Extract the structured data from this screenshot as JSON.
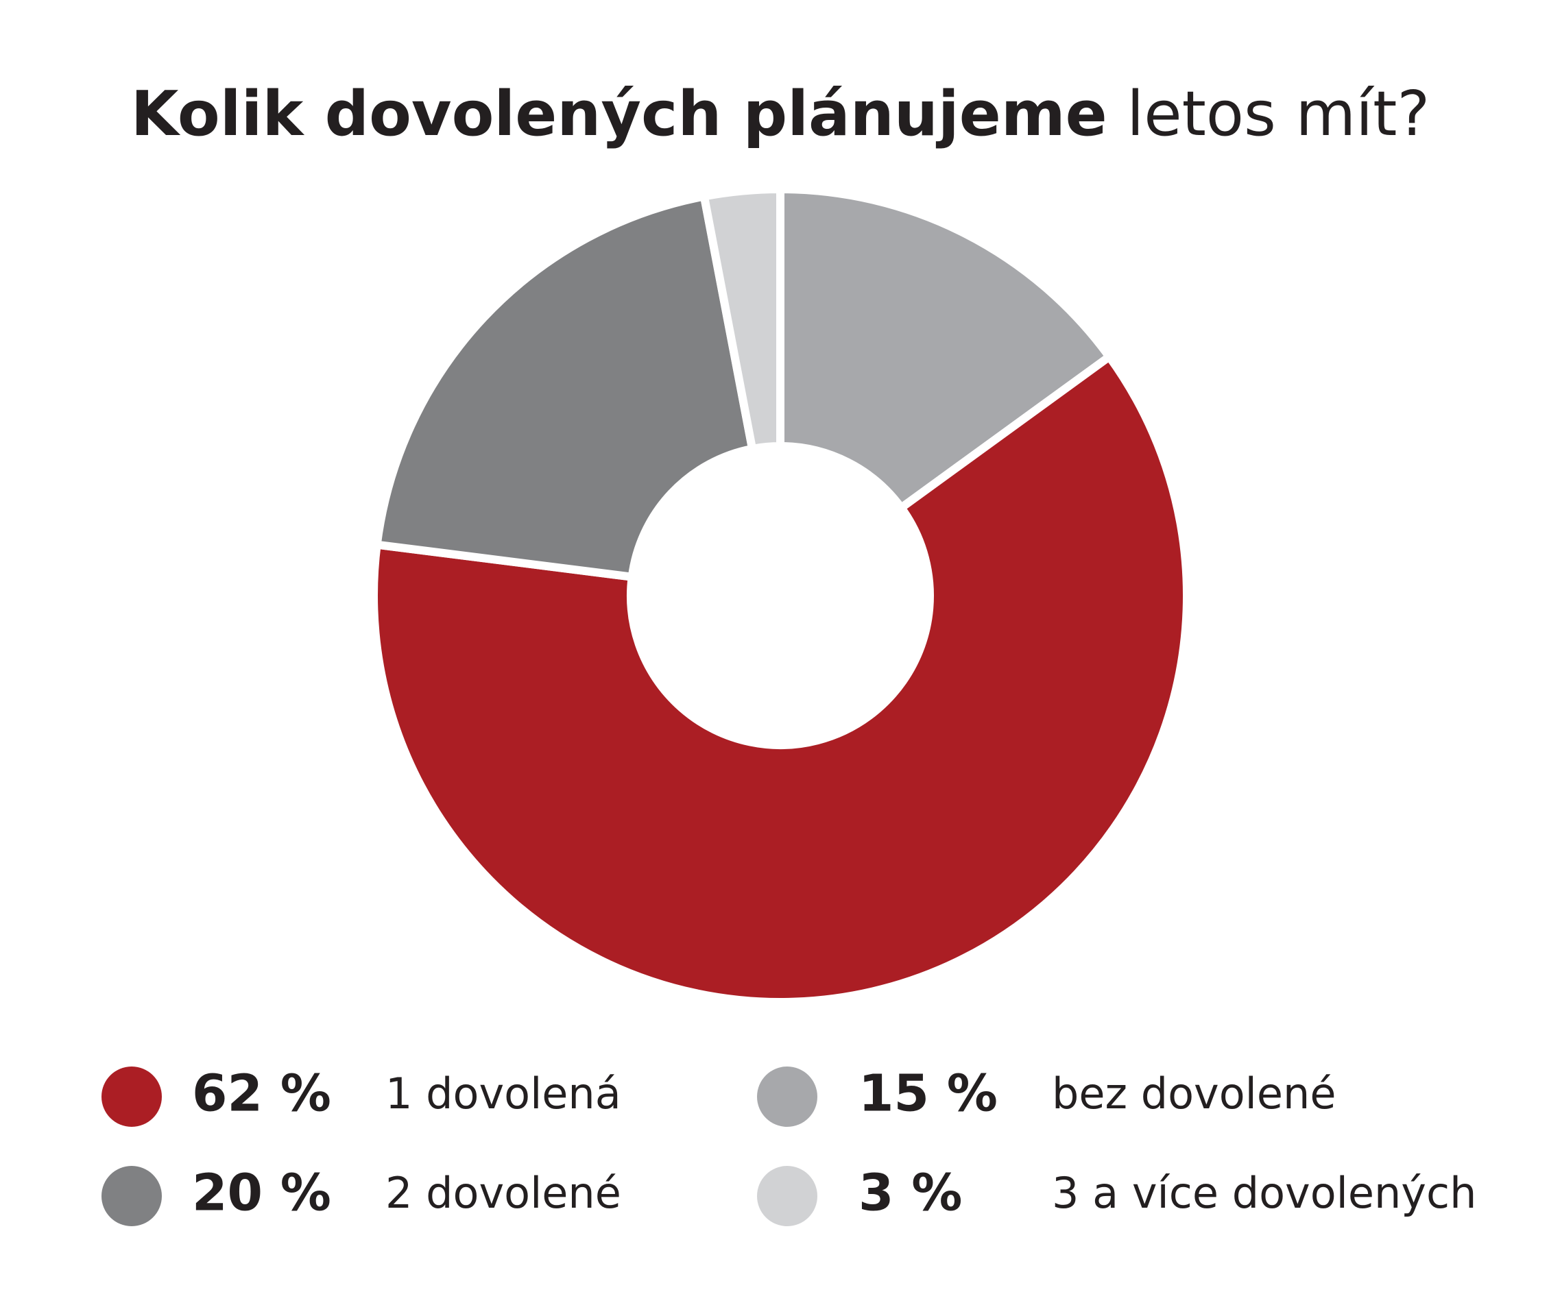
{
  "chart_data": {
    "type": "donut",
    "title": [
      "Kolik dovolených plánujeme",
      "letos mít?"
    ],
    "categories": [
      "bez dovolené",
      "1 dovolená",
      "2 dovolené",
      "3 a více dovolených"
    ],
    "values": [
      15,
      62,
      20,
      3
    ],
    "value_labels": [
      "15 %",
      "62 %",
      "20 %",
      "3 %"
    ],
    "colors": [
      "#a7a8ab",
      "#ab1e24",
      "#808183",
      "#d1d2d4"
    ]
  }
}
